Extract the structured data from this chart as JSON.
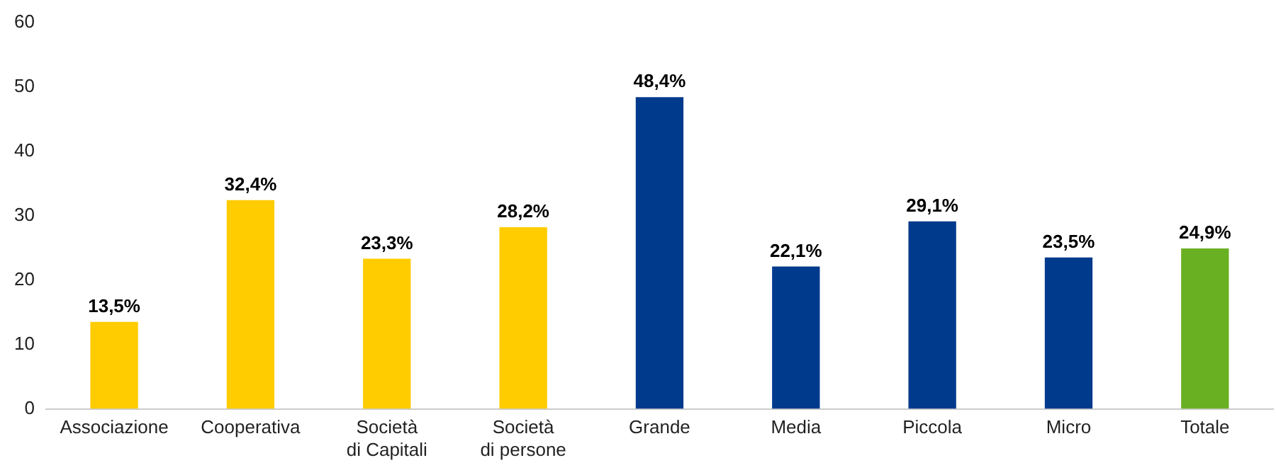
{
  "chart_data": {
    "type": "bar",
    "categories": [
      "Associazione",
      "Cooperativa",
      "Società\ndi Capitali",
      "Società\ndi persone",
      "Grande",
      "Media",
      "Piccola",
      "Micro",
      "Totale"
    ],
    "values": [
      13.5,
      32.4,
      23.3,
      28.2,
      48.4,
      22.1,
      29.1,
      23.5,
      24.9
    ],
    "colors": [
      "#ffcc00",
      "#ffcc00",
      "#ffcc00",
      "#ffcc00",
      "#003a8c",
      "#003a8c",
      "#003a8c",
      "#003a8c",
      "#6ab023"
    ],
    "value_labels": [
      "13,5%",
      "32,4%",
      "23,3%",
      "28,2%",
      "48,4%",
      "22,1%",
      "29,1%",
      "23,5%",
      "24,9%"
    ],
    "ylim": [
      0,
      60
    ],
    "yticks": [
      0,
      10,
      20,
      30,
      40,
      50,
      60
    ],
    "grid": false,
    "legend": false
  }
}
